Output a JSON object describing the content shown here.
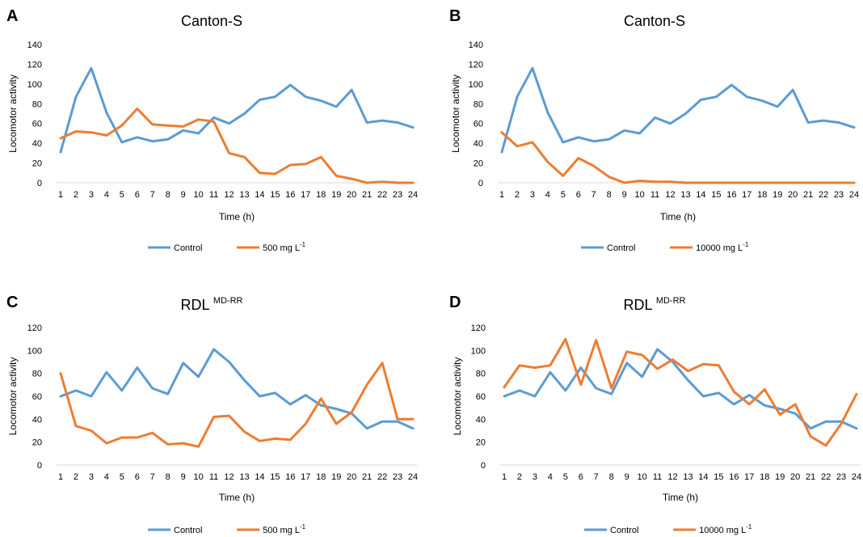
{
  "chart_data": [
    {
      "type": "line",
      "panel": "A",
      "title": "Canton-S",
      "title_superscript": "",
      "xlabel": "Time (h)",
      "ylabel": "Locomotor activity",
      "ylim": [
        0,
        140
      ],
      "yticks": [
        0,
        20,
        40,
        60,
        80,
        100,
        120,
        140
      ],
      "grid": false,
      "legend_position": "bottom",
      "x": [
        1,
        2,
        3,
        4,
        5,
        6,
        7,
        8,
        9,
        10,
        11,
        12,
        13,
        14,
        15,
        16,
        17,
        18,
        19,
        20,
        21,
        22,
        23,
        24
      ],
      "series": [
        {
          "name": "Control",
          "color": "#5B9BD5",
          "values": [
            31,
            87,
            116,
            71,
            41,
            46,
            42,
            44,
            53,
            50,
            66,
            60,
            70,
            84,
            87,
            99,
            87,
            83,
            77,
            94,
            61,
            63,
            61,
            56
          ]
        },
        {
          "name": "500 mg L",
          "name_superscript": "-1",
          "color": "#ED7D31",
          "values": [
            45,
            52,
            51,
            48,
            58,
            75,
            59,
            58,
            57,
            64,
            62,
            30,
            26,
            10,
            9,
            18,
            19,
            26,
            7,
            4,
            0,
            1,
            0,
            0
          ]
        }
      ]
    },
    {
      "type": "line",
      "panel": "B",
      "title": "Canton-S",
      "title_superscript": "",
      "xlabel": "Time (h)",
      "ylabel": "Locomotor activity",
      "ylim": [
        0,
        140
      ],
      "yticks": [
        0,
        20,
        40,
        60,
        80,
        100,
        120,
        140
      ],
      "grid": false,
      "legend_position": "bottom",
      "x": [
        1,
        2,
        3,
        4,
        5,
        6,
        7,
        8,
        9,
        10,
        11,
        12,
        13,
        14,
        15,
        16,
        17,
        18,
        19,
        20,
        21,
        22,
        23,
        24
      ],
      "series": [
        {
          "name": "Control",
          "color": "#5B9BD5",
          "values": [
            31,
            87,
            116,
            71,
            41,
            46,
            42,
            44,
            53,
            50,
            66,
            60,
            70,
            84,
            87,
            99,
            87,
            83,
            77,
            94,
            61,
            63,
            61,
            56
          ]
        },
        {
          "name": "10000 mg L",
          "name_superscript": "-1",
          "color": "#ED7D31",
          "values": [
            51,
            37,
            41,
            21,
            7,
            25,
            17,
            6,
            0,
            2,
            1,
            1,
            0,
            0,
            0,
            0,
            0,
            0,
            0,
            0,
            0,
            0,
            0,
            0
          ]
        }
      ]
    },
    {
      "type": "line",
      "panel": "C",
      "title": "RDL",
      "title_superscript": "MD-RR",
      "xlabel": "Time (h)",
      "ylabel": "Locomotor activity",
      "ylim": [
        0,
        120
      ],
      "yticks": [
        0,
        20,
        40,
        60,
        80,
        100,
        120
      ],
      "grid": false,
      "legend_position": "bottom",
      "x": [
        1,
        2,
        3,
        4,
        5,
        6,
        7,
        8,
        9,
        10,
        11,
        12,
        13,
        14,
        15,
        16,
        17,
        18,
        19,
        20,
        21,
        22,
        23,
        24
      ],
      "series": [
        {
          "name": "Control",
          "color": "#5B9BD5",
          "values": [
            60,
            65,
            60,
            81,
            65,
            85,
            67,
            62,
            89,
            77,
            101,
            90,
            74,
            60,
            63,
            53,
            61,
            52,
            49,
            45,
            32,
            38,
            38,
            32
          ]
        },
        {
          "name": "500 mg L",
          "name_superscript": "-1",
          "color": "#ED7D31",
          "values": [
            80,
            34,
            30,
            19,
            24,
            24,
            28,
            18,
            19,
            16,
            42,
            43,
            29,
            21,
            23,
            22,
            36,
            58,
            36,
            46,
            70,
            89,
            40,
            40
          ]
        }
      ]
    },
    {
      "type": "line",
      "panel": "D",
      "title": "RDL",
      "title_superscript": "MD-RR",
      "xlabel": "Time (h)",
      "ylabel": "Locomotor activity",
      "ylim": [
        0,
        120
      ],
      "yticks": [
        0,
        20,
        40,
        60,
        80,
        100,
        120
      ],
      "grid": false,
      "legend_position": "bottom",
      "x": [
        1,
        2,
        3,
        4,
        5,
        6,
        7,
        8,
        9,
        10,
        11,
        12,
        13,
        14,
        15,
        16,
        17,
        18,
        19,
        20,
        21,
        22,
        23,
        24
      ],
      "series": [
        {
          "name": "Control",
          "color": "#5B9BD5",
          "values": [
            60,
            65,
            60,
            81,
            65,
            85,
            67,
            62,
            89,
            77,
            101,
            90,
            74,
            60,
            63,
            53,
            61,
            52,
            49,
            45,
            32,
            38,
            38,
            32
          ]
        },
        {
          "name": "10000 mg L",
          "name_superscript": "-1",
          "color": "#ED7D31",
          "values": [
            68,
            87,
            85,
            87,
            110,
            70,
            109,
            67,
            99,
            96,
            84,
            92,
            82,
            88,
            87,
            64,
            53,
            66,
            44,
            53,
            25,
            17,
            36,
            62
          ]
        }
      ]
    }
  ]
}
